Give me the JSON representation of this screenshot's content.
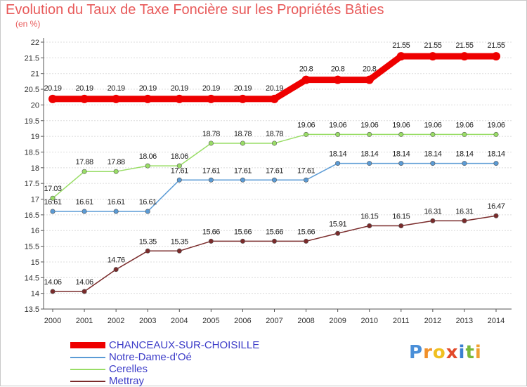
{
  "page": {
    "title": "Evolution du Taux de Taxe Foncière sur les Propriétés Bâties",
    "subtitle": "(en %)"
  },
  "chart_data": {
    "type": "line",
    "title": "Evolution du Taux de Taxe Foncière sur les Propriétés Bâties",
    "subtitle": "(en %)",
    "x": [
      "2000",
      "2001",
      "2002",
      "2003",
      "2004",
      "2005",
      "2006",
      "2007",
      "2008",
      "2009",
      "2010",
      "2011",
      "2012",
      "2013",
      "2014"
    ],
    "ylim": [
      13.5,
      22
    ],
    "yticks": [
      "13.5",
      "14",
      "14.5",
      "15",
      "15.5",
      "16",
      "16.5",
      "17",
      "17.5",
      "18",
      "18.5",
      "19",
      "19.5",
      "20",
      "20.5",
      "21",
      "21.5",
      "22"
    ],
    "grid": "horizontal",
    "legend_position": "bottom",
    "series": [
      {
        "name": "CHANCEAUX-SUR-CHOISILLE",
        "color": "#ee0000",
        "values": [
          20.19,
          20.19,
          20.19,
          20.19,
          20.19,
          20.19,
          20.19,
          20.19,
          20.8,
          20.8,
          20.8,
          21.55,
          21.55,
          21.55,
          21.55
        ],
        "labels": [
          "20.19",
          "20.19",
          "20.19",
          "20.19",
          "20.19",
          "20.19",
          "20.19",
          "20.19",
          "20.8",
          "20.8",
          "20.8",
          "21.55",
          "21.55",
          "21.55",
          "21.55"
        ]
      },
      {
        "name": "Notre-Dame-d'Oé",
        "color": "#5b9bd5",
        "values": [
          16.61,
          16.61,
          16.61,
          16.61,
          17.61,
          17.61,
          17.61,
          17.61,
          17.61,
          18.14,
          18.14,
          18.14,
          18.14,
          18.14,
          18.14
        ],
        "labels": [
          "16.61",
          "16.61",
          "16.61",
          "16.61",
          "17.61",
          "17.61",
          "17.61",
          "17.61",
          "17.61",
          "18.14",
          "18.14",
          "18.14",
          "18.14",
          "18.14",
          "18.14"
        ]
      },
      {
        "name": "Cerelles",
        "color": "#99dd66",
        "values": [
          17.03,
          17.88,
          17.88,
          18.06,
          18.06,
          18.78,
          18.78,
          18.78,
          19.06,
          19.06,
          19.06,
          19.06,
          19.06,
          19.06,
          19.06
        ],
        "labels": [
          "17.03",
          "17.88",
          "17.88",
          "18.06",
          "18.06",
          "18.78",
          "18.78",
          "18.78",
          "19.06",
          "19.06",
          "19.06",
          "19.06",
          "19.06",
          "19.06",
          "19.06"
        ]
      },
      {
        "name": "Mettray",
        "color": "#7a2b2b",
        "values": [
          14.06,
          14.06,
          14.76,
          15.35,
          15.35,
          15.66,
          15.66,
          15.66,
          15.66,
          15.91,
          16.15,
          16.15,
          16.31,
          16.31,
          16.47
        ],
        "labels": [
          "14.06",
          "14.06",
          "14.76",
          "15.35",
          "15.35",
          "15.66",
          "15.66",
          "15.66",
          "15.66",
          "15.91",
          "16.15",
          "16.15",
          "16.31",
          "16.31",
          "16.47"
        ]
      }
    ]
  },
  "logo": {
    "letters": [
      "P",
      "r",
      "o",
      "x",
      "i",
      "t",
      "i"
    ],
    "colors": [
      "#4a8fd8",
      "#f0902a",
      "#f0c020",
      "#e24a2a",
      "#3a7fd0",
      "#7ab83a",
      "#f0a030"
    ]
  }
}
